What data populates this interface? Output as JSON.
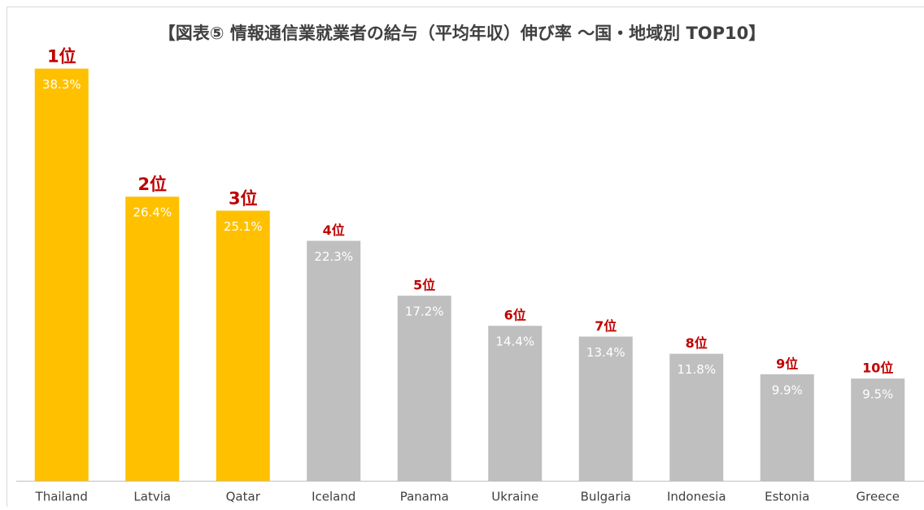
{
  "chart_data": {
    "type": "bar",
    "title": "【図表⑤ 情報通信業就業者の給与（平均年収）伸び率 ～国・地域別 TOP10】",
    "categories": [
      "Thailand",
      "Latvia",
      "Qatar",
      "Iceland",
      "Panama",
      "Ukraine",
      "Bulgaria",
      "Indonesia",
      "Estonia",
      "Greece"
    ],
    "values": [
      38.3,
      26.4,
      25.1,
      22.3,
      17.2,
      14.4,
      13.4,
      11.8,
      9.9,
      9.5
    ],
    "value_labels": [
      "38.3%",
      "26.4%",
      "25.1%",
      "22.3%",
      "17.2%",
      "14.4%",
      "13.4%",
      "11.8%",
      "9.9%",
      "9.5%"
    ],
    "rank_labels": [
      "1位",
      "2位",
      "3位",
      "4位",
      "5位",
      "6位",
      "7位",
      "8位",
      "9位",
      "10位"
    ],
    "colors": [
      "#ffc000",
      "#ffc000",
      "#ffc000",
      "#bfbfbf",
      "#bfbfbf",
      "#bfbfbf",
      "#bfbfbf",
      "#bfbfbf",
      "#bfbfbf",
      "#bfbfbf"
    ],
    "ylim": [
      0,
      40
    ]
  }
}
